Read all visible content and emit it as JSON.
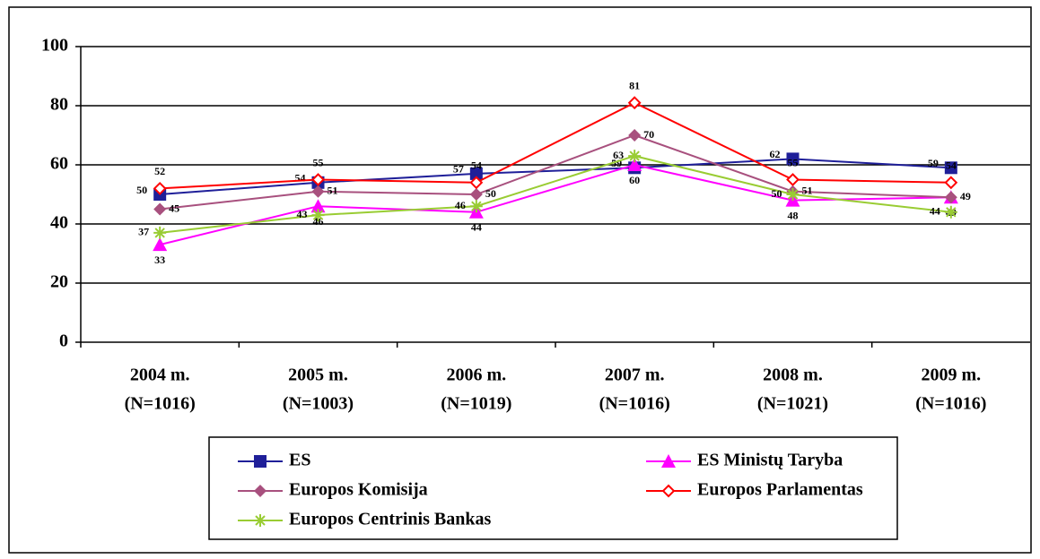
{
  "chart_data": {
    "type": "line",
    "categories": [
      [
        "2004 m.",
        "(N=1016)"
      ],
      [
        "2005 m.",
        "(N=1003)"
      ],
      [
        "2006 m.",
        "(N=1019)"
      ],
      [
        "2007 m.",
        "(N=1016)"
      ],
      [
        "2008 m.",
        "(N=1021)"
      ],
      [
        "2009 m.",
        "(N=1016)"
      ]
    ],
    "series": [
      {
        "name": "ES",
        "color": "#1f1f99",
        "marker": "square",
        "values": [
          50,
          54,
          57,
          59,
          62,
          59
        ]
      },
      {
        "name": "ES Ministų Taryba",
        "color": "#ff00ff",
        "marker": "triangle",
        "values": [
          33,
          46,
          44,
          60,
          48,
          49
        ]
      },
      {
        "name": "Europos Komisija",
        "color": "#a8507e",
        "marker": "diamond",
        "values": [
          45,
          51,
          50,
          70,
          51,
          49
        ]
      },
      {
        "name": "Europos Parlamentas",
        "color": "#ff0000",
        "marker": "open-diamond",
        "values": [
          52,
          55,
          54,
          81,
          55,
          54
        ]
      },
      {
        "name": "Europos Centrinis Bankas",
        "color": "#99cc33",
        "marker": "star",
        "values": [
          37,
          43,
          46,
          63,
          50,
          44
        ]
      }
    ],
    "ylim": [
      0,
      100
    ],
    "yticks": [
      0,
      20,
      40,
      60,
      80,
      100
    ],
    "grid": true
  }
}
